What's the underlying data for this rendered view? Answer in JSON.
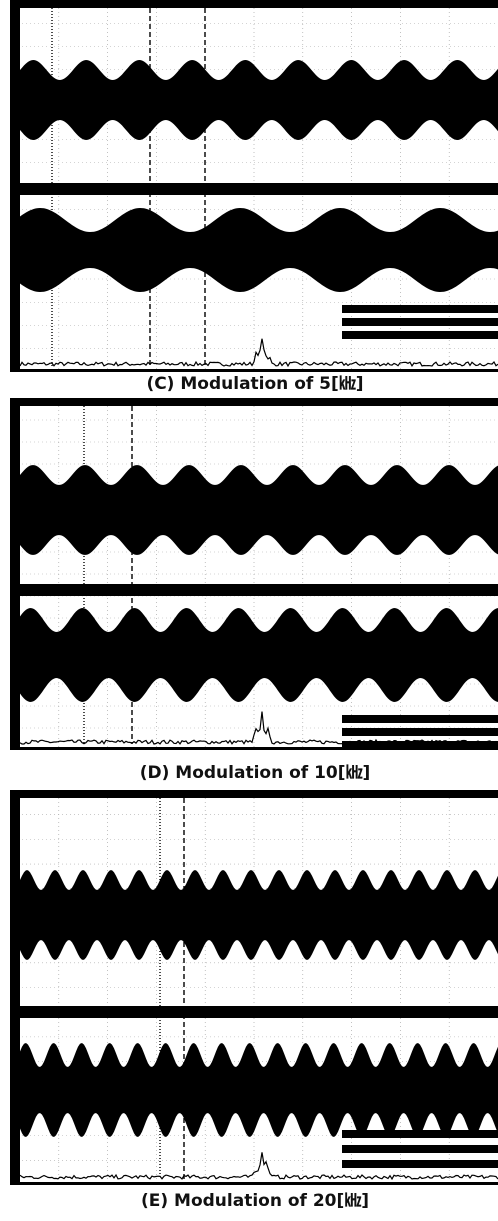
{
  "figure": {
    "panels": [
      {
        "caption": "(C) Modulation of 5[㎑]"
      },
      {
        "caption": "(D) Modulation of 10[㎑]"
      },
      {
        "caption": "(E) Modulation of 20[㎑]"
      }
    ]
  }
}
